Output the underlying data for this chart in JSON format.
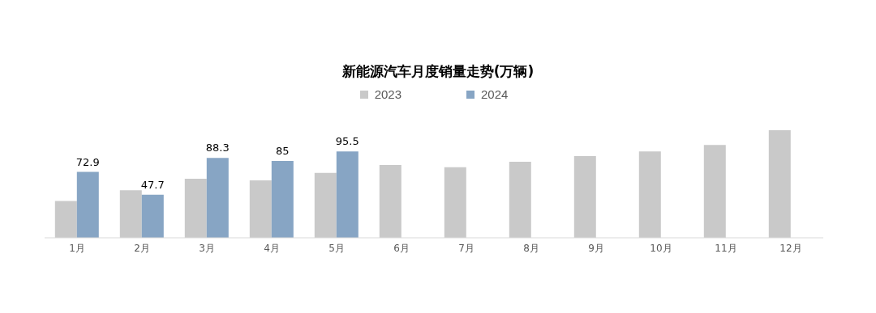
{
  "chart_data": {
    "type": "bar",
    "title": "新能源汽车月度销量走势(万辆)",
    "categories": [
      "1月",
      "2月",
      "3月",
      "4月",
      "5月",
      "6月",
      "7月",
      "8月",
      "9月",
      "10月",
      "11月",
      "12月"
    ],
    "series": [
      {
        "name": "2023",
        "color": "#c9c9c9",
        "values": [
          40.8,
          52.5,
          65.3,
          63.6,
          71.7,
          80.6,
          78,
          84,
          90.4,
          95.6,
          102.6,
          119
        ]
      },
      {
        "name": "2024",
        "color": "#87a5c4",
        "values": [
          72.9,
          47.7,
          88.3,
          85,
          95.5,
          null,
          null,
          null,
          null,
          null,
          null,
          null
        ],
        "value_labels": [
          "72.9",
          "47.7",
          "88.3",
          "85",
          "95.5",
          null,
          null,
          null,
          null,
          null,
          null,
          null
        ]
      }
    ],
    "legend": "top"
  }
}
